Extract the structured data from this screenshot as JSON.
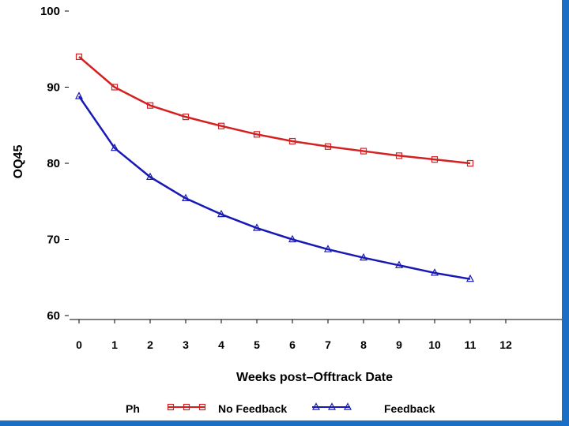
{
  "chart_data": {
    "type": "line",
    "xlabel": "Weeks post–Offtrack Date",
    "ylabel": "OQ45",
    "xlim": [
      0,
      12
    ],
    "ylim": [
      60,
      100
    ],
    "x_ticks": [
      0,
      1,
      2,
      3,
      4,
      5,
      6,
      7,
      8,
      9,
      10,
      11,
      12
    ],
    "y_ticks": [
      60,
      70,
      80,
      90,
      100
    ],
    "grid": false,
    "legend_position": "bottom",
    "legend_title": "Ph",
    "x": [
      0,
      1,
      2,
      3,
      4,
      5,
      6,
      7,
      8,
      9,
      10,
      11
    ],
    "series": [
      {
        "name": "No Feedback",
        "marker": "square",
        "color": "#d42020",
        "values": [
          94.0,
          90.0,
          87.6,
          86.1,
          84.9,
          83.8,
          82.9,
          82.2,
          81.6,
          81.0,
          80.5,
          80.0
        ]
      },
      {
        "name": "Feedback",
        "marker": "triangle",
        "color": "#1818b4",
        "values": [
          88.8,
          82.0,
          78.2,
          75.4,
          73.3,
          71.5,
          70.0,
          68.7,
          67.6,
          66.6,
          65.6,
          64.8
        ]
      }
    ]
  }
}
